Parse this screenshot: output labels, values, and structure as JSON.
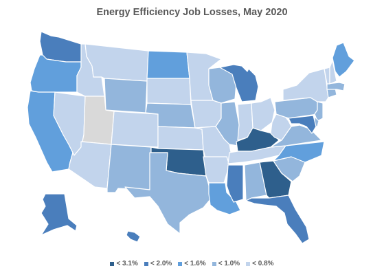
{
  "title": "Energy Efficiency Job Losses, May 2020",
  "legend": [
    {
      "label": "< 3.1%",
      "color": "#2e5f8c"
    },
    {
      "label": "< 2.0%",
      "color": "#4a7ebc"
    },
    {
      "label": "< 1.6%",
      "color": "#619fdc"
    },
    {
      "label": "< 1.0%",
      "color": "#93b6dc"
    },
    {
      "label": "< 0.8%",
      "color": "#c2d4ec"
    }
  ],
  "no_data_color": "#d9d9d9",
  "states": [
    {
      "name": "WA",
      "bin": 1
    },
    {
      "name": "OR",
      "bin": 2
    },
    {
      "name": "CA",
      "bin": 2
    },
    {
      "name": "ID",
      "bin": 4
    },
    {
      "name": "NV",
      "bin": 4
    },
    {
      "name": "MT",
      "bin": 4
    },
    {
      "name": "WY",
      "bin": 3
    },
    {
      "name": "UT",
      "bin": null
    },
    {
      "name": "AZ",
      "bin": 4
    },
    {
      "name": "CO",
      "bin": 4
    },
    {
      "name": "NM",
      "bin": 3
    },
    {
      "name": "ND",
      "bin": 2
    },
    {
      "name": "SD",
      "bin": 4
    },
    {
      "name": "NE",
      "bin": 3
    },
    {
      "name": "KS",
      "bin": 4
    },
    {
      "name": "OK",
      "bin": 0
    },
    {
      "name": "TX",
      "bin": 3
    },
    {
      "name": "MN",
      "bin": 4
    },
    {
      "name": "IA",
      "bin": 4
    },
    {
      "name": "MO",
      "bin": 4
    },
    {
      "name": "AR",
      "bin": 4
    },
    {
      "name": "LA",
      "bin": 2
    },
    {
      "name": "WI",
      "bin": 3
    },
    {
      "name": "IL",
      "bin": 3
    },
    {
      "name": "MI",
      "bin": 1
    },
    {
      "name": "IN",
      "bin": 4
    },
    {
      "name": "OH",
      "bin": 4
    },
    {
      "name": "KY",
      "bin": 0
    },
    {
      "name": "TN",
      "bin": 4
    },
    {
      "name": "MS",
      "bin": 1
    },
    {
      "name": "AL",
      "bin": 3
    },
    {
      "name": "GA",
      "bin": 0
    },
    {
      "name": "FL",
      "bin": 1
    },
    {
      "name": "SC",
      "bin": 3
    },
    {
      "name": "NC",
      "bin": 2
    },
    {
      "name": "VA",
      "bin": 3
    },
    {
      "name": "WV",
      "bin": 4
    },
    {
      "name": "PA",
      "bin": 3
    },
    {
      "name": "NY",
      "bin": 4
    },
    {
      "name": "VT",
      "bin": 4
    },
    {
      "name": "NH",
      "bin": 4
    },
    {
      "name": "ME",
      "bin": 2
    },
    {
      "name": "MA",
      "bin": 3
    },
    {
      "name": "CT",
      "bin": 3
    },
    {
      "name": "NJ",
      "bin": 3
    },
    {
      "name": "MD",
      "bin": 1
    },
    {
      "name": "DE",
      "bin": 3
    },
    {
      "name": "AK",
      "bin": 1
    },
    {
      "name": "HI",
      "bin": 1
    }
  ]
}
